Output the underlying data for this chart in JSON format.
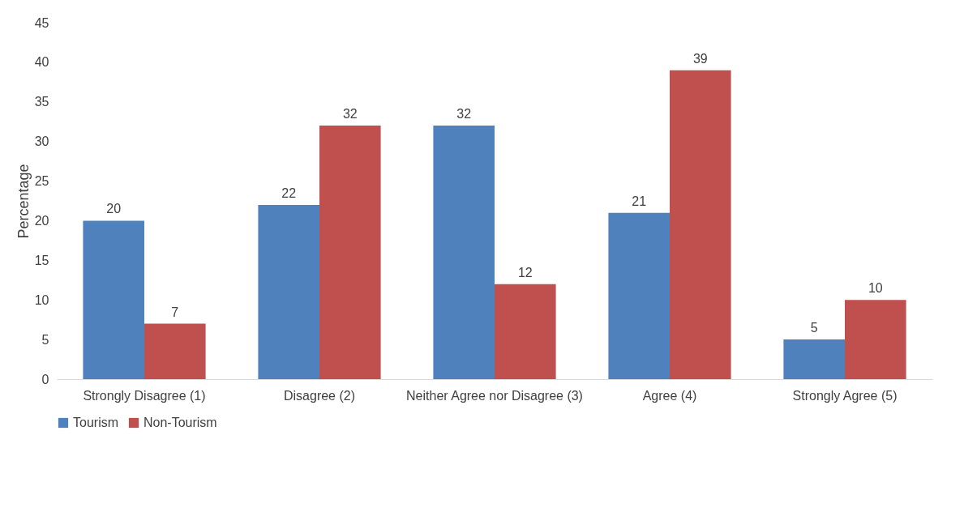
{
  "chart_data": {
    "type": "bar",
    "ylabel": "Percentage",
    "categories": [
      "Strongly Disagree (1)",
      "Disagree (2)",
      "Neither Agree nor Disagree (3)",
      "Agree  (4)",
      "Strongly Agree (5)"
    ],
    "series": [
      {
        "name": "Tourism",
        "color": "#4f81bd",
        "values": [
          20,
          22,
          32,
          21,
          5
        ]
      },
      {
        "name": "Non-Tourism",
        "color": "#c0504d",
        "values": [
          7,
          32,
          12,
          39,
          10
        ]
      }
    ],
    "ylim": [
      0,
      45
    ],
    "yticks": [
      0,
      5,
      10,
      15,
      20,
      25,
      30,
      35,
      40,
      45
    ],
    "data_labels": true,
    "grid": false,
    "legend": "bottom"
  }
}
